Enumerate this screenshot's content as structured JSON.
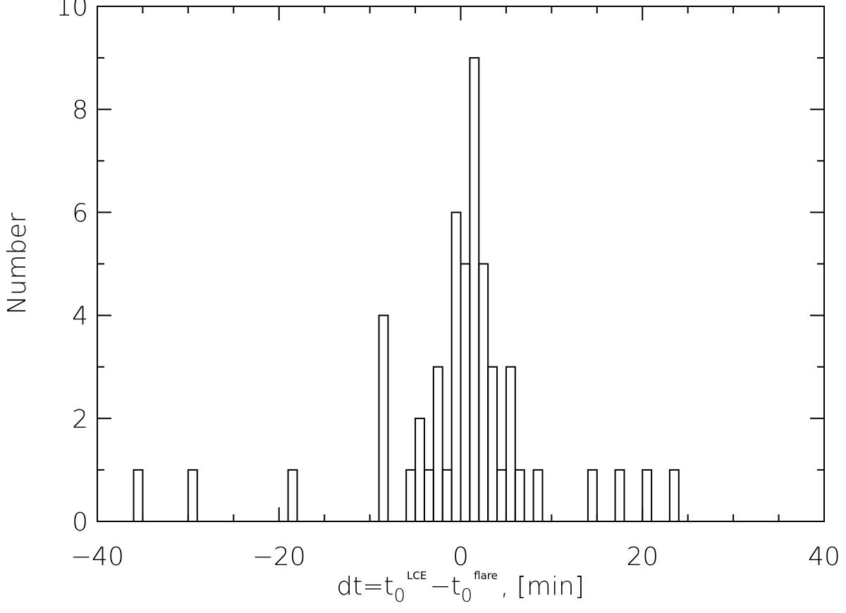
{
  "chart_data": {
    "type": "bar",
    "style": "histogram-step-outline",
    "title": "",
    "xlabel": {
      "prefix": "dt=t",
      "sub1": "0",
      "sup1": "LCE",
      "minus": "−t",
      "sub2": "0",
      "sup2": "flare",
      "suffix": ",  [min]"
    },
    "ylabel": "Number",
    "xlim": [
      -40,
      40
    ],
    "ylim": [
      0,
      10
    ],
    "x_major_ticks": [
      -40,
      -20,
      0,
      20,
      40
    ],
    "x_tick_labels": [
      "−40",
      "−20",
      "0",
      "20",
      "40"
    ],
    "x_minor_step": 5,
    "y_major_ticks": [
      0,
      2,
      4,
      6,
      8,
      10
    ],
    "y_tick_labels": [
      "0",
      "2",
      "4",
      "6",
      "8",
      "10"
    ],
    "y_minor_step": 1,
    "grid": false,
    "legend": "none",
    "bin_width": 1,
    "bins": [
      {
        "x": -36,
        "count": 1
      },
      {
        "x": -30,
        "count": 1
      },
      {
        "x": -19,
        "count": 1
      },
      {
        "x": -9,
        "count": 4
      },
      {
        "x": -6,
        "count": 1
      },
      {
        "x": -5,
        "count": 2
      },
      {
        "x": -4,
        "count": 1
      },
      {
        "x": -3,
        "count": 3
      },
      {
        "x": -2,
        "count": 1
      },
      {
        "x": -1,
        "count": 6
      },
      {
        "x": 0,
        "count": 5
      },
      {
        "x": 1,
        "count": 9
      },
      {
        "x": 2,
        "count": 5
      },
      {
        "x": 3,
        "count": 3
      },
      {
        "x": 4,
        "count": 1
      },
      {
        "x": 5,
        "count": 3
      },
      {
        "x": 6,
        "count": 1
      },
      {
        "x": 8,
        "count": 1
      },
      {
        "x": 14,
        "count": 1
      },
      {
        "x": 17,
        "count": 1
      },
      {
        "x": 20,
        "count": 1
      },
      {
        "x": 23,
        "count": 1
      }
    ],
    "colors": {
      "line": "#000000",
      "background": "#ffffff"
    }
  }
}
